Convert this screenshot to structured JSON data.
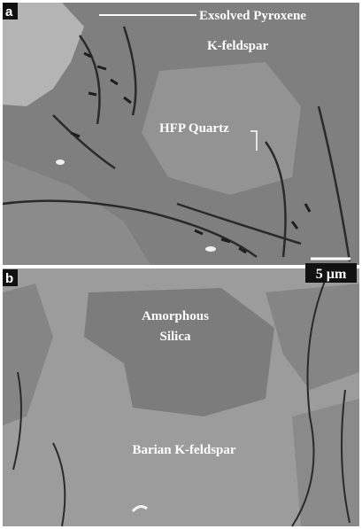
{
  "panels": [
    {
      "label": "a",
      "annotations": [
        "Exsolved Pyroxene",
        "K-feldspar",
        "HFP Quartz"
      ],
      "scale_bar": "5 µm"
    },
    {
      "label": "b",
      "annotations": [
        [
          "Amorphous",
          "Silica"
        ],
        "Barian K-feldspar"
      ]
    }
  ]
}
